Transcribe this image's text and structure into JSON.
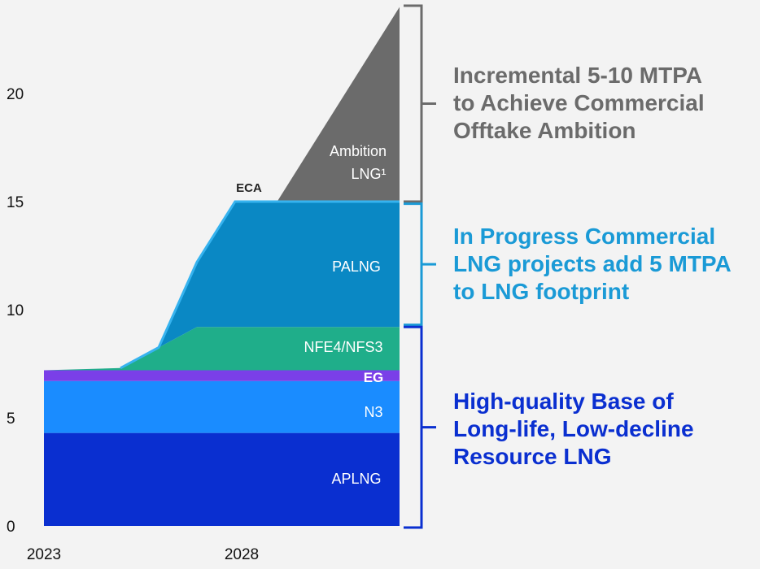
{
  "chart_data": {
    "type": "area",
    "title": "",
    "xlabel": "",
    "ylabel": "",
    "x_tick_labels": [
      "2023",
      "2028"
    ],
    "y_ticks": [
      0,
      5,
      10,
      15,
      20
    ],
    "ylim": [
      0,
      24
    ],
    "xlim": [
      2023,
      2032.3
    ],
    "series": [
      {
        "name": "APLNG",
        "label": "APLNG",
        "color": "#0a2fd0",
        "points": [
          [
            2023,
            4.3
          ],
          [
            2032.3,
            4.3
          ]
        ]
      },
      {
        "name": "N3",
        "label": "N3",
        "color": "#1a8cff",
        "points": [
          [
            2023,
            2.4
          ],
          [
            2032.3,
            2.4
          ]
        ]
      },
      {
        "name": "EG",
        "label": "EG",
        "color": "#7a3fe8",
        "points": [
          [
            2023,
            0.5
          ],
          [
            2032.3,
            0.5
          ]
        ]
      },
      {
        "name": "NFE4/NFS3",
        "label": "NFE4/NFS3",
        "color": "#1fae8a",
        "points": [
          [
            2023,
            0
          ],
          [
            2025,
            0.1
          ],
          [
            2027,
            2.0
          ],
          [
            2032.3,
            2.0
          ]
        ]
      },
      {
        "name": "PALNG",
        "label": "PALNG",
        "color": "#0a88c4",
        "points": [
          [
            2026,
            0
          ],
          [
            2027,
            3.0
          ],
          [
            2028,
            5.8
          ],
          [
            2029,
            5.8
          ],
          [
            2032.3,
            5.8
          ]
        ]
      },
      {
        "name": "Ambition LNG",
        "label": "Ambition",
        "label2": "LNG¹",
        "color": "#6b6b6b",
        "points": [
          [
            2029.1,
            0
          ],
          [
            2032.3,
            9.0
          ]
        ]
      }
    ],
    "annotations": [
      {
        "text": "ECA",
        "x": 2028.2,
        "y": 15.2
      }
    ],
    "brackets": [
      {
        "range": [
          15,
          24
        ],
        "color": "#6b6b6b",
        "lines": [
          "Incremental 5-10 MTPA",
          "to Achieve Commercial",
          "Offtake Ambition"
        ]
      },
      {
        "range": [
          9.3,
          14.9
        ],
        "color": "#1a9ad6",
        "lines": [
          "In Progress Commercial",
          "LNG projects add 5 MTPA",
          "to LNG footprint"
        ]
      },
      {
        "range": [
          0,
          9.2
        ],
        "color": "#0a2fd0",
        "lines": [
          "High-quality Base of",
          "Long-life, Low-decline",
          "Resource LNG"
        ]
      }
    ]
  }
}
